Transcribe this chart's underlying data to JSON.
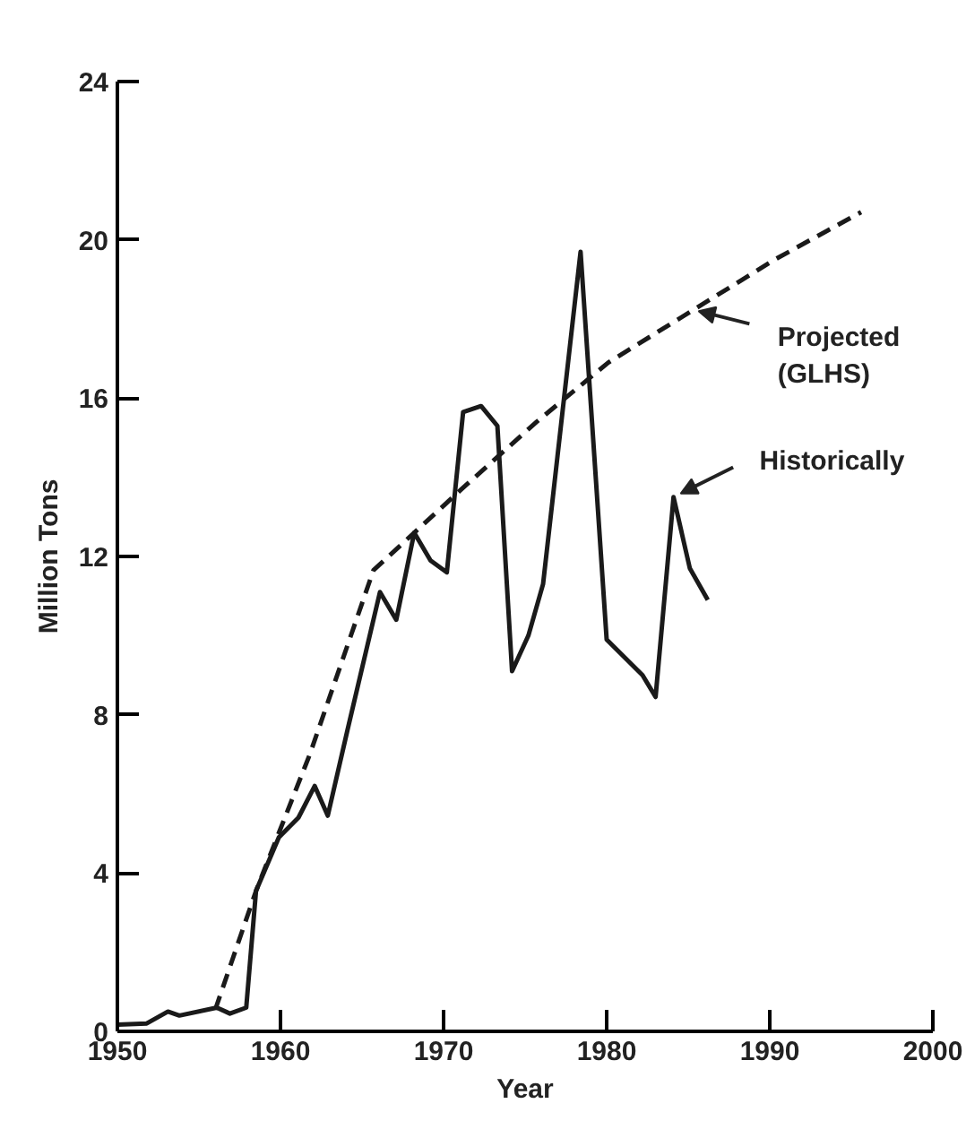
{
  "chart_data": {
    "type": "line",
    "xlabel": "Year",
    "ylabel": "Million Tons",
    "xlim": [
      1950,
      2000
    ],
    "ylim": [
      0,
      24
    ],
    "xticks": [
      1950,
      1960,
      1970,
      1980,
      1990,
      2000
    ],
    "yticks": [
      0,
      4,
      8,
      12,
      16,
      20,
      24
    ],
    "grid": false,
    "marker": "none",
    "series": [
      {
        "name": "Projected\n(GLHS)",
        "color": "#1a1a1a",
        "line_style": "dashed",
        "x": [
          1956.0,
          1958.5,
          1961.8,
          1965.7,
          1971.1,
          1975.7,
          1980.1,
          1985.2,
          1990.3,
          1995.6
        ],
        "values": [
          0.55,
          3.55,
          7.0,
          11.65,
          13.7,
          15.4,
          16.9,
          18.2,
          19.5,
          20.7
        ]
      },
      {
        "name": "Historically",
        "color": "#1a1a1a",
        "line_style": "solid",
        "x": [
          1950.0,
          1951.8,
          1953.1,
          1953.8,
          1956.1,
          1956.9,
          1957.9,
          1958.5,
          1959.9,
          1961.1,
          1962.1,
          1962.9,
          1964.1,
          1966.1,
          1967.1,
          1968.2,
          1969.2,
          1970.2,
          1971.2,
          1972.3,
          1973.3,
          1974.2,
          1975.2,
          1976.1,
          1978.4,
          1980.0,
          1982.2,
          1983.0,
          1984.1,
          1985.1,
          1986.2
        ],
        "values": [
          0.17,
          0.2,
          0.5,
          0.4,
          0.6,
          0.45,
          0.6,
          3.55,
          4.9,
          5.4,
          6.2,
          5.45,
          7.6,
          11.1,
          10.4,
          12.6,
          11.9,
          11.6,
          15.65,
          15.8,
          15.3,
          9.1,
          10.0,
          11.3,
          19.7,
          9.9,
          9.0,
          8.45,
          13.5,
          11.7,
          10.9
        ]
      }
    ]
  }
}
